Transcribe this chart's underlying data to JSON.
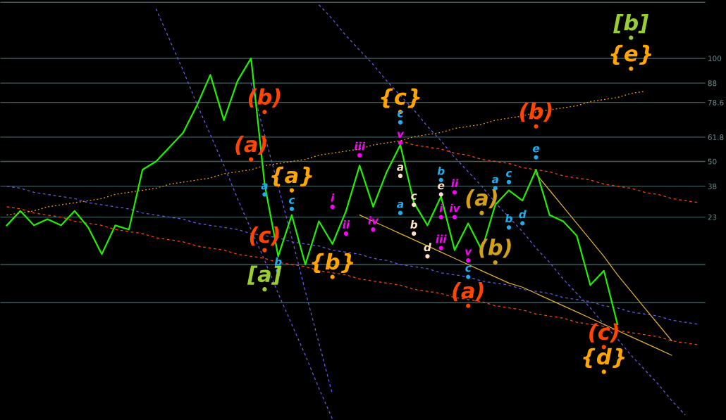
{
  "chart_data": {
    "type": "line",
    "ylim": [
      -75.4,
      128.3
    ],
    "categories": [
      null,
      null,
      null,
      null,
      null,
      null,
      null,
      null,
      null,
      null,
      null,
      null,
      null,
      null,
      null,
      null,
      null,
      null,
      null,
      null,
      null,
      null,
      null,
      null,
      null,
      null,
      null,
      null,
      null,
      null,
      null,
      null,
      null,
      null,
      null,
      null,
      null,
      null,
      null,
      null,
      null,
      null,
      null,
      null,
      null,
      null,
      null,
      null,
      null,
      null,
      null,
      null
    ],
    "yticks": [
      {
        "value": 127.2,
        "label": null
      },
      100,
      88,
      78.6,
      61.8,
      50,
      38,
      23,
      {
        "value": 0,
        "label": null
      },
      {
        "value": -18.4,
        "label": null
      }
    ],
    "grid": "y",
    "series": [
      {
        "color": "#22ee00",
        "values": [
          19,
          26,
          19,
          22,
          19,
          26,
          18,
          5,
          19,
          17,
          46,
          50,
          57,
          64,
          77,
          92,
          70,
          89,
          100,
          39,
          4,
          24,
          0,
          21,
          10,
          26,
          48,
          28,
          45,
          58,
          30,
          19,
          33,
          7,
          20,
          7,
          29,
          36,
          31,
          46,
          24,
          21,
          14,
          -10,
          -3,
          -29,
          null,
          null,
          null,
          null,
          null,
          null
        ]
      },
      {
        "color": "#6a5ae8",
        "line_style": "dashed",
        "values": [
          null,
          null,
          null,
          null,
          null,
          null,
          null,
          null,
          null,
          null,
          null,
          124,
          109,
          94,
          78,
          63,
          48,
          32,
          17,
          2,
          -14,
          -29,
          -44,
          -60,
          -75,
          null,
          null,
          null,
          null,
          null,
          null,
          null,
          null,
          null,
          null,
          null,
          null,
          null,
          null,
          null,
          null,
          null,
          null,
          null,
          null,
          null,
          null,
          null,
          null,
          null,
          null,
          null
        ]
      },
      {
        "color": "#6a5ae8",
        "line_style": "dashed",
        "values": [
          null,
          null,
          null,
          null,
          null,
          null,
          null,
          null,
          null,
          null,
          null,
          null,
          null,
          null,
          null,
          null,
          null,
          null,
          88,
          63,
          38,
          13,
          -13,
          -38,
          -63,
          null,
          null,
          null,
          null,
          null,
          null,
          null,
          null,
          null,
          null,
          null,
          null,
          null,
          null,
          null,
          null,
          null,
          null,
          null,
          null,
          null,
          null,
          null,
          null,
          null,
          null,
          null
        ]
      },
      {
        "color": "#6a5ae8",
        "line_style": "dashed",
        "values": [
          null,
          null,
          null,
          null,
          null,
          null,
          null,
          null,
          null,
          null,
          null,
          null,
          null,
          null,
          null,
          null,
          null,
          null,
          null,
          null,
          null,
          null,
          null,
          126,
          119,
          111,
          104,
          97,
          89,
          82,
          75,
          67,
          60,
          52,
          45,
          38,
          30,
          23,
          16,
          8,
          1,
          -7,
          -14,
          -21,
          -29,
          -36,
          -44,
          -51,
          -58,
          -66,
          -73,
          null
        ]
      },
      {
        "color": "#6a5ae8",
        "line_style": "dashed",
        "values": [
          38,
          37,
          35,
          34,
          33,
          32,
          30,
          29,
          28,
          27,
          25,
          24,
          23,
          22,
          20,
          19,
          18,
          17,
          15,
          14,
          13,
          11,
          10,
          9,
          7,
          6,
          5,
          3,
          2,
          0,
          -1,
          -2,
          -4,
          -5,
          -6,
          -8,
          -9,
          -10,
          -12,
          -13,
          -14,
          -16,
          -17,
          -18,
          -20,
          -21,
          -23,
          -24,
          -25,
          -27,
          -28,
          -29
        ]
      },
      {
        "color": "#ff4500",
        "line_style": "dashed",
        "values": [
          28,
          27,
          25,
          24,
          23,
          21,
          20,
          19,
          17,
          16,
          15,
          13,
          12,
          11,
          9,
          8,
          7,
          5,
          4,
          3,
          1,
          0,
          -1,
          -3,
          -4,
          -5,
          -7,
          -8,
          -9,
          -10,
          -12,
          -13,
          -14,
          -16,
          -17,
          -18,
          -20,
          -21,
          -22,
          -24,
          -25,
          -26,
          -28,
          -29,
          -30,
          -32,
          -33,
          -34,
          -35,
          -37,
          -38,
          -39
        ]
      },
      {
        "color": "#ff4500",
        "line_style": "dashed",
        "values": [
          null,
          null,
          null,
          null,
          null,
          null,
          null,
          null,
          null,
          null,
          null,
          null,
          null,
          null,
          null,
          null,
          null,
          null,
          null,
          null,
          null,
          null,
          null,
          null,
          null,
          null,
          null,
          null,
          null,
          60,
          58,
          57,
          56,
          54,
          53,
          51,
          50,
          49,
          47,
          46,
          45,
          43,
          42,
          41,
          39,
          38,
          37,
          35,
          34,
          32,
          31,
          30
        ]
      },
      {
        "color": "#ffa500",
        "line_style": "dotted",
        "values": [
          24,
          25,
          26,
          28,
          29,
          30,
          31,
          32,
          34,
          35,
          36,
          37,
          39,
          40,
          41,
          42,
          44,
          45,
          46,
          48,
          49,
          50,
          51,
          53,
          54,
          55,
          56,
          58,
          59,
          60,
          62,
          63,
          64,
          66,
          67,
          68,
          70,
          71,
          72,
          74,
          75,
          76,
          77,
          79,
          80,
          81,
          83,
          84,
          null,
          null,
          null,
          null
        ]
      },
      {
        "color": "#e0b030",
        "line_style": "solid",
        "values": [
          null,
          null,
          null,
          null,
          null,
          null,
          null,
          null,
          null,
          null,
          null,
          null,
          null,
          null,
          null,
          null,
          null,
          null,
          null,
          null,
          null,
          null,
          null,
          null,
          null,
          null,
          24,
          21,
          18,
          15,
          12,
          9,
          6,
          3,
          0,
          -3,
          -6,
          -9,
          -11,
          -14,
          -17,
          -20,
          -23,
          -26,
          -29,
          -32,
          -35,
          -38,
          -41,
          -44,
          null,
          null
        ]
      },
      {
        "color": "#e0b030",
        "line_style": "solid",
        "values": [
          null,
          null,
          null,
          null,
          null,
          null,
          null,
          null,
          null,
          null,
          null,
          null,
          null,
          null,
          null,
          null,
          null,
          null,
          null,
          null,
          null,
          null,
          null,
          null,
          null,
          null,
          null,
          null,
          null,
          null,
          null,
          null,
          null,
          null,
          null,
          null,
          null,
          null,
          null,
          44,
          36,
          28,
          20,
          12,
          4,
          -5,
          -13,
          -21,
          -29,
          -37,
          null,
          null
        ]
      },
      {
        "type": "scatter",
        "marker": "circle",
        "color": "#9acd32",
        "values": [
          null,
          null,
          null,
          null,
          null,
          null,
          null,
          null,
          null,
          null,
          null,
          null,
          null,
          null,
          null,
          null,
          null,
          null,
          null,
          -12,
          null,
          null,
          null,
          null,
          null,
          null,
          null,
          null,
          null,
          null,
          null,
          null,
          null,
          null,
          null,
          null,
          null,
          null,
          null,
          null,
          null,
          null,
          null,
          null,
          null,
          null,
          110,
          null,
          null,
          null,
          null,
          null
        ],
        "value_labels": [
          null,
          null,
          null,
          null,
          null,
          null,
          null,
          null,
          null,
          null,
          null,
          null,
          null,
          null,
          null,
          null,
          null,
          null,
          null,
          "[a]",
          null,
          null,
          null,
          null,
          null,
          null,
          null,
          null,
          null,
          null,
          null,
          null,
          null,
          null,
          null,
          null,
          null,
          null,
          null,
          null,
          null,
          null,
          null,
          null,
          null,
          null,
          "[b]",
          null,
          null,
          null,
          null,
          null
        ]
      },
      {
        "type": "scatter",
        "marker": "circle",
        "color": "#ffa500",
        "values": [
          null,
          null,
          null,
          null,
          null,
          null,
          null,
          null,
          null,
          null,
          null,
          null,
          null,
          null,
          null,
          null,
          null,
          null,
          null,
          null,
          null,
          36,
          null,
          null,
          -6,
          null,
          null,
          null,
          null,
          74,
          null,
          null,
          null,
          null,
          null,
          null,
          null,
          null,
          null,
          null,
          null,
          null,
          null,
          null,
          -52,
          null,
          95,
          null,
          null,
          null,
          null,
          null
        ],
        "value_labels": [
          null,
          null,
          null,
          null,
          null,
          null,
          null,
          null,
          null,
          null,
          null,
          null,
          null,
          null,
          null,
          null,
          null,
          null,
          null,
          null,
          null,
          "{a}",
          null,
          null,
          "{b}",
          null,
          null,
          null,
          null,
          "{c}",
          null,
          null,
          null,
          null,
          null,
          null,
          null,
          null,
          null,
          null,
          null,
          null,
          null,
          null,
          "{d}",
          null,
          "{e}",
          null,
          null,
          null,
          null,
          null
        ]
      },
      {
        "type": "scatter",
        "marker": "circle",
        "color": "#ff4500",
        "values": [
          null,
          null,
          null,
          null,
          null,
          null,
          null,
          null,
          null,
          null,
          null,
          null,
          null,
          null,
          null,
          null,
          null,
          null,
          51,
          74,
          null,
          null,
          null,
          null,
          null,
          null,
          null,
          null,
          null,
          null,
          null,
          null,
          null,
          null,
          -20,
          null,
          null,
          null,
          null,
          67,
          null,
          null,
          null,
          null,
          -40,
          null,
          null,
          null,
          null,
          null,
          null,
          null
        ],
        "value_labels": [
          null,
          null,
          null,
          null,
          null,
          null,
          null,
          null,
          null,
          null,
          null,
          null,
          null,
          null,
          null,
          null,
          null,
          null,
          "(a)",
          "(b)",
          null,
          null,
          null,
          null,
          null,
          null,
          null,
          null,
          null,
          null,
          null,
          null,
          null,
          null,
          "(a)",
          null,
          null,
          null,
          null,
          "(b)",
          null,
          null,
          null,
          null,
          "(c)",
          null,
          null,
          null,
          null,
          null,
          null,
          null
        ]
      },
      {
        "type": "scatter",
        "marker": "circle",
        "color": "#ff4500",
        "values": [
          null,
          null,
          null,
          null,
          null,
          null,
          null,
          null,
          null,
          null,
          null,
          null,
          null,
          null,
          null,
          null,
          null,
          null,
          null,
          7,
          null,
          null,
          null,
          null,
          null,
          null,
          null,
          null,
          null,
          null,
          null,
          null,
          null,
          null,
          null,
          null,
          null,
          null,
          null,
          null,
          null,
          null,
          null,
          null,
          null,
          null,
          null,
          null,
          null,
          null,
          null,
          null
        ],
        "value_labels": [
          null,
          null,
          null,
          null,
          null,
          null,
          null,
          null,
          null,
          null,
          null,
          null,
          null,
          null,
          null,
          null,
          null,
          null,
          null,
          "(c)",
          null,
          null,
          null,
          null,
          null,
          null,
          null,
          null,
          null,
          null,
          null,
          null,
          null,
          null,
          null,
          null,
          null,
          null,
          null,
          null,
          null,
          null,
          null,
          null,
          null,
          null,
          null,
          null,
          null,
          null,
          null,
          null
        ]
      },
      {
        "type": "scatter",
        "marker": "circle",
        "color": "#1eaef0",
        "values": [
          null,
          null,
          null,
          null,
          null,
          null,
          null,
          null,
          null,
          null,
          null,
          null,
          null,
          null,
          null,
          null,
          null,
          null,
          null,
          34,
          -3,
          27,
          null,
          null,
          null,
          null,
          null,
          null,
          null,
          69,
          null,
          null,
          41,
          null,
          -6,
          null,
          37,
          40,
          20,
          52,
          null,
          null,
          null,
          null,
          null,
          null,
          null,
          null,
          null,
          null,
          null,
          null
        ],
        "value_labels": [
          null,
          null,
          null,
          null,
          null,
          null,
          null,
          null,
          null,
          null,
          null,
          null,
          null,
          null,
          null,
          null,
          null,
          null,
          null,
          "a",
          "b",
          "c",
          null,
          null,
          null,
          null,
          null,
          null,
          null,
          "c",
          null,
          null,
          "b",
          null,
          "c",
          null,
          "a",
          "c",
          "d",
          "e",
          null,
          null,
          null,
          null,
          null,
          null,
          null,
          null,
          null,
          null,
          null,
          null
        ]
      },
      {
        "type": "scatter",
        "marker": "circle",
        "color": "#1eaef0",
        "values": [
          null,
          null,
          null,
          null,
          null,
          null,
          null,
          null,
          null,
          null,
          null,
          null,
          null,
          null,
          null,
          null,
          null,
          null,
          null,
          null,
          null,
          null,
          null,
          null,
          null,
          null,
          null,
          null,
          null,
          25,
          null,
          null,
          null,
          null,
          null,
          null,
          null,
          18,
          null,
          null,
          null,
          null,
          null,
          null,
          null,
          null,
          null,
          null,
          null,
          null,
          null,
          null
        ],
        "value_labels": [
          null,
          null,
          null,
          null,
          null,
          null,
          null,
          null,
          null,
          null,
          null,
          null,
          null,
          null,
          null,
          null,
          null,
          null,
          null,
          null,
          null,
          null,
          null,
          null,
          null,
          null,
          null,
          null,
          null,
          "a",
          null,
          null,
          null,
          null,
          null,
          null,
          null,
          "b",
          null,
          null,
          null,
          null,
          null,
          null,
          null,
          null,
          null,
          null,
          null,
          null,
          null,
          null
        ]
      },
      {
        "type": "scatter",
        "marker": "circle",
        "color": "#ffe4c4",
        "values": [
          null,
          null,
          null,
          null,
          null,
          null,
          null,
          null,
          null,
          null,
          null,
          null,
          null,
          null,
          null,
          null,
          null,
          null,
          null,
          null,
          null,
          null,
          null,
          null,
          null,
          null,
          null,
          null,
          null,
          43,
          29,
          4,
          34,
          null,
          null,
          null,
          null,
          null,
          null,
          null,
          null,
          null,
          null,
          null,
          null,
          null,
          null,
          null,
          null,
          null,
          null,
          null
        ],
        "value_labels": [
          null,
          null,
          null,
          null,
          null,
          null,
          null,
          null,
          null,
          null,
          null,
          null,
          null,
          null,
          null,
          null,
          null,
          null,
          null,
          null,
          null,
          null,
          null,
          null,
          null,
          null,
          null,
          null,
          null,
          "a",
          "c",
          "d",
          "e",
          null,
          null,
          null,
          null,
          null,
          null,
          null,
          null,
          null,
          null,
          null,
          null,
          null,
          null,
          null,
          null,
          null,
          null,
          null
        ]
      },
      {
        "type": "scatter",
        "marker": "circle",
        "color": "#ffe4c4",
        "values": [
          null,
          null,
          null,
          null,
          null,
          null,
          null,
          null,
          null,
          null,
          null,
          null,
          null,
          null,
          null,
          null,
          null,
          null,
          null,
          null,
          null,
          null,
          null,
          null,
          null,
          null,
          null,
          null,
          null,
          null,
          15,
          null,
          null,
          null,
          null,
          null,
          null,
          null,
          null,
          null,
          null,
          null,
          null,
          null,
          null,
          null,
          null,
          null,
          null,
          null,
          null,
          null
        ],
        "value_labels": [
          null,
          null,
          null,
          null,
          null,
          null,
          null,
          null,
          null,
          null,
          null,
          null,
          null,
          null,
          null,
          null,
          null,
          null,
          null,
          null,
          null,
          null,
          null,
          null,
          null,
          null,
          null,
          null,
          null,
          null,
          "b",
          null,
          null,
          null,
          null,
          null,
          null,
          null,
          null,
          null,
          null,
          null,
          null,
          null,
          null,
          null,
          null,
          null,
          null,
          null,
          null,
          null
        ]
      },
      {
        "type": "scatter",
        "marker": "circle",
        "color": "#ff00ff",
        "values": [
          null,
          null,
          null,
          null,
          null,
          null,
          null,
          null,
          null,
          null,
          null,
          null,
          null,
          null,
          null,
          null,
          null,
          null,
          null,
          null,
          null,
          null,
          null,
          null,
          28,
          15,
          53,
          17,
          null,
          59,
          null,
          null,
          23,
          35,
          2,
          null,
          null,
          null,
          null,
          null,
          null,
          null,
          null,
          null,
          null,
          null,
          null,
          null,
          null,
          null,
          null,
          null
        ],
        "value_labels": [
          null,
          null,
          null,
          null,
          null,
          null,
          null,
          null,
          null,
          null,
          null,
          null,
          null,
          null,
          null,
          null,
          null,
          null,
          null,
          null,
          null,
          null,
          null,
          null,
          "i",
          "ii",
          "iii",
          "iv",
          null,
          "v",
          null,
          null,
          "i",
          "ii",
          "v",
          null,
          null,
          null,
          null,
          null,
          null,
          null,
          null,
          null,
          null,
          null,
          null,
          null,
          null,
          null,
          null,
          null
        ]
      },
      {
        "type": "scatter",
        "marker": "circle",
        "color": "#ff00ff",
        "values": [
          null,
          null,
          null,
          null,
          null,
          null,
          null,
          null,
          null,
          null,
          null,
          null,
          null,
          null,
          null,
          null,
          null,
          null,
          null,
          null,
          null,
          null,
          null,
          null,
          null,
          null,
          null,
          null,
          null,
          null,
          null,
          null,
          8,
          23,
          null,
          null,
          null,
          null,
          null,
          null,
          null,
          null,
          null,
          null,
          null,
          null,
          null,
          null,
          null,
          null,
          null,
          null
        ],
        "value_labels": [
          null,
          null,
          null,
          null,
          null,
          null,
          null,
          null,
          null,
          null,
          null,
          null,
          null,
          null,
          null,
          null,
          null,
          null,
          null,
          null,
          null,
          null,
          null,
          null,
          null,
          null,
          null,
          null,
          null,
          null,
          null,
          null,
          "iii",
          "iv",
          null,
          null,
          null,
          null,
          null,
          null,
          null,
          null,
          null,
          null,
          null,
          null,
          null,
          null,
          null,
          null,
          null,
          null
        ]
      },
      {
        "type": "scatter",
        "marker": "circle",
        "color": "#d4a017",
        "values": [
          null,
          null,
          null,
          null,
          null,
          null,
          null,
          null,
          null,
          null,
          null,
          null,
          null,
          null,
          null,
          null,
          null,
          null,
          null,
          null,
          null,
          null,
          null,
          null,
          null,
          null,
          null,
          null,
          null,
          null,
          null,
          null,
          null,
          null,
          null,
          25,
          1,
          null,
          null,
          null,
          null,
          null,
          null,
          null,
          null,
          null,
          null,
          null,
          null,
          null,
          null,
          null
        ],
        "value_labels": [
          null,
          null,
          null,
          null,
          null,
          null,
          null,
          null,
          null,
          null,
          null,
          null,
          null,
          null,
          null,
          null,
          null,
          null,
          null,
          null,
          null,
          null,
          null,
          null,
          null,
          null,
          null,
          null,
          null,
          null,
          null,
          null,
          null,
          null,
          null,
          "(a)",
          "(b)",
          null,
          null,
          null,
          null,
          null,
          null,
          null,
          null,
          null,
          null,
          null,
          null,
          null,
          null,
          null
        ]
      }
    ]
  }
}
